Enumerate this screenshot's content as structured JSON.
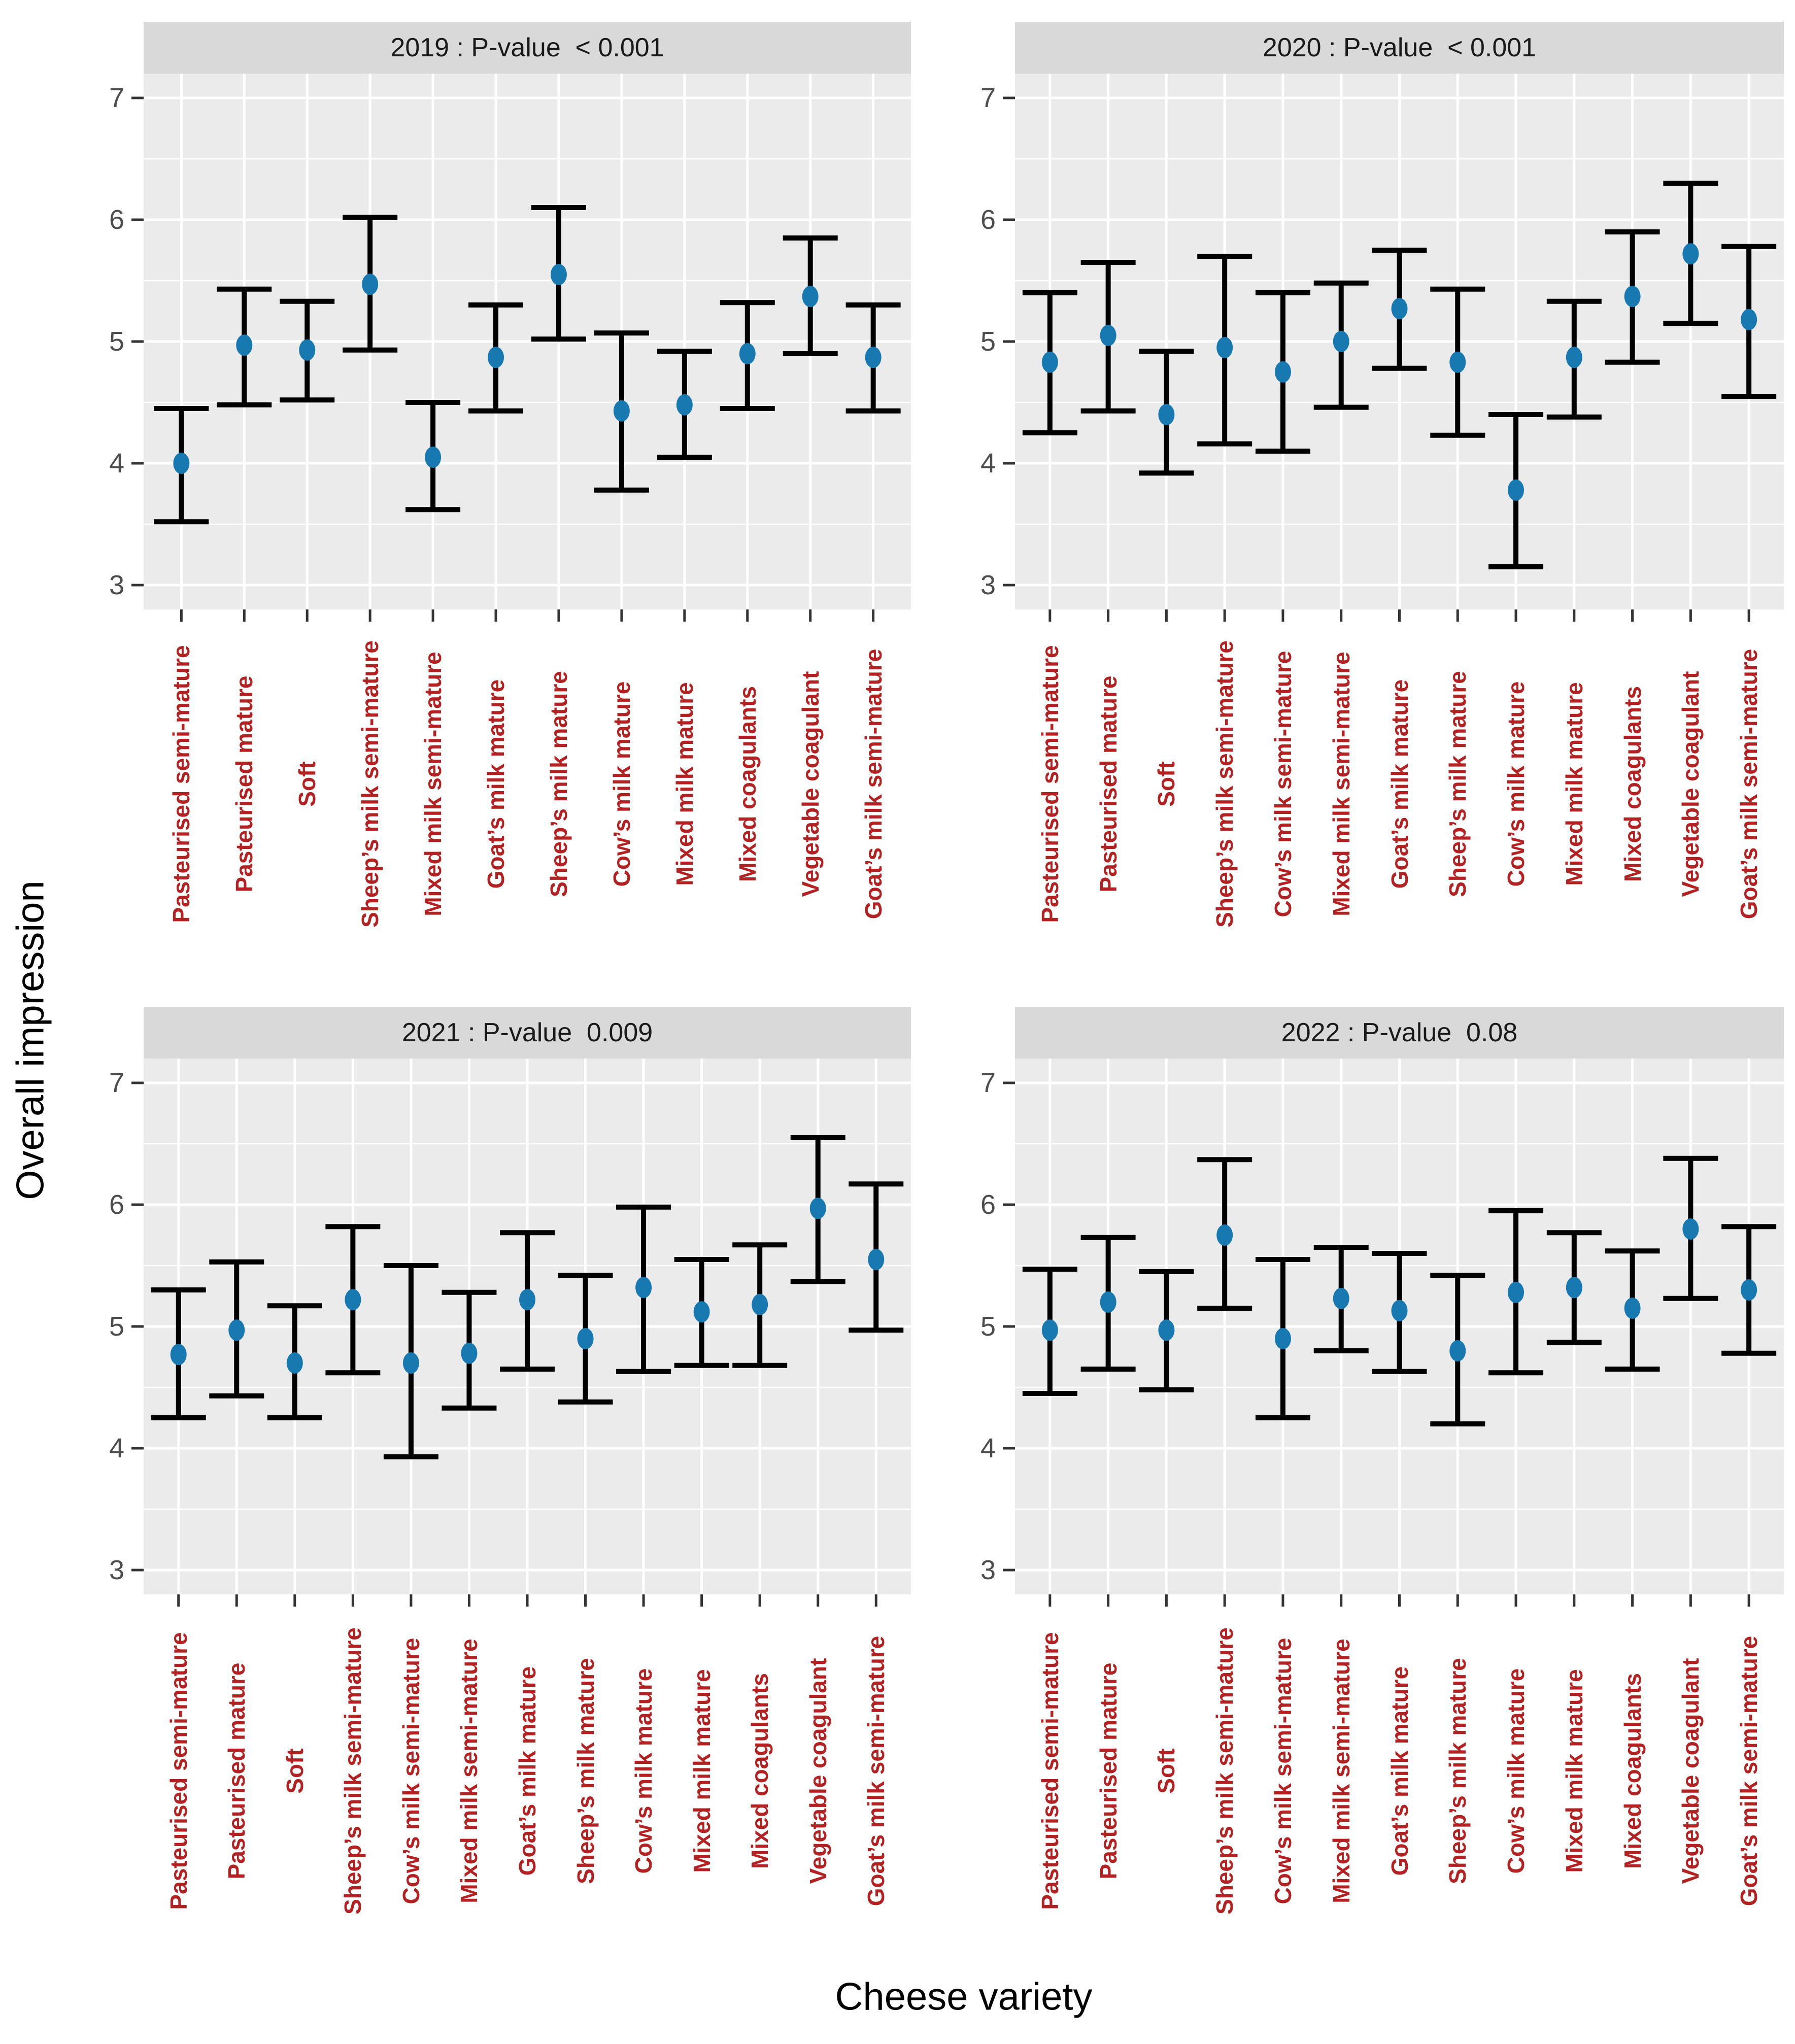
{
  "figure": {
    "y_axis_title": "Overall impression",
    "x_axis_title": "Cheese variety",
    "colors": {
      "point": "#1878b0",
      "error_bar": "#000000",
      "panel_background": "#ebebeb",
      "strip_background": "#d9d9d9",
      "grid_major": "#ffffff",
      "grid_minor": "#ffffff",
      "x_tick_label": "#b22222",
      "y_tick_label": "#4d4d4d",
      "tick_mark": "#333333"
    }
  },
  "chart_data": [
    {
      "type": "scatter",
      "panel": "2019",
      "title": "2019 : P-value  < 0.001",
      "ylabel": "Overall impression",
      "xlabel": "Cheese variety",
      "ylim": [
        2.8,
        7.2
      ],
      "yticks": [
        3,
        4,
        5,
        6,
        7
      ],
      "yticks_minor": [
        3.5,
        4.5,
        5.5,
        6.5
      ],
      "grid": true,
      "categories": [
        "Pasteurised semi-mature",
        "Pasteurised mature",
        "Soft",
        "Sheep’s milk semi-mature",
        "Mixed milk semi-mature",
        "Goat’s milk mature",
        "Sheep’s milk mature",
        "Cow’s milk mature",
        "Mixed milk mature",
        "Mixed coagulants",
        "Vegetable coagulant",
        "Goat’s milk semi-mature"
      ],
      "means": [
        4.0,
        4.97,
        4.93,
        5.47,
        4.05,
        4.87,
        5.55,
        4.43,
        4.48,
        4.9,
        5.37,
        4.87
      ],
      "lower": [
        3.52,
        4.48,
        4.52,
        4.93,
        3.62,
        4.43,
        5.02,
        3.78,
        4.05,
        4.45,
        4.9,
        4.43
      ],
      "upper": [
        4.45,
        5.43,
        5.33,
        6.02,
        4.5,
        5.3,
        6.1,
        5.07,
        4.92,
        5.32,
        5.85,
        5.3
      ]
    },
    {
      "type": "scatter",
      "panel": "2020",
      "title": "2020 : P-value  < 0.001",
      "ylabel": "Overall impression",
      "xlabel": "Cheese variety",
      "ylim": [
        2.8,
        7.2
      ],
      "yticks": [
        3,
        4,
        5,
        6,
        7
      ],
      "yticks_minor": [
        3.5,
        4.5,
        5.5,
        6.5
      ],
      "grid": true,
      "categories": [
        "Pasteurised semi-mature",
        "Pasteurised mature",
        "Soft",
        "Sheep’s milk semi-mature",
        "Cow’s milk semi-mature",
        "Mixed milk semi-mature",
        "Goat’s milk mature",
        "Sheep’s milk mature",
        "Cow’s milk mature",
        "Mixed milk mature",
        "Mixed coagulants",
        "Vegetable coagulant",
        "Goat’s milk semi-mature"
      ],
      "means": [
        4.83,
        5.05,
        4.4,
        4.95,
        4.75,
        5.0,
        5.27,
        4.83,
        3.78,
        4.87,
        5.37,
        5.72,
        5.18
      ],
      "lower": [
        4.25,
        4.43,
        3.92,
        4.16,
        4.1,
        4.46,
        4.78,
        4.23,
        3.15,
        4.38,
        4.83,
        5.15,
        4.55
      ],
      "upper": [
        5.4,
        5.65,
        4.92,
        5.7,
        5.4,
        5.48,
        5.75,
        5.43,
        4.4,
        5.33,
        5.9,
        6.3,
        5.78
      ]
    },
    {
      "type": "scatter",
      "panel": "2021",
      "title": "2021 : P-value  0.009",
      "ylabel": "Overall impression",
      "xlabel": "Cheese variety",
      "ylim": [
        2.8,
        7.2
      ],
      "yticks": [
        3,
        4,
        5,
        6,
        7
      ],
      "yticks_minor": [
        3.5,
        4.5,
        5.5,
        6.5
      ],
      "grid": true,
      "categories": [
        "Pasteurised semi-mature",
        "Pasteurised mature",
        "Soft",
        "Sheep’s milk semi-mature",
        "Cow’s milk semi-mature",
        "Mixed milk semi-mature",
        "Goat’s milk mature",
        "Sheep’s milk mature",
        "Cow’s milk mature",
        "Mixed milk mature",
        "Mixed coagulants",
        "Vegetable coagulant",
        "Goat’s milk semi-mature"
      ],
      "means": [
        4.77,
        4.97,
        4.7,
        5.22,
        4.7,
        4.78,
        5.22,
        4.9,
        5.32,
        5.12,
        5.18,
        5.97,
        5.55
      ],
      "lower": [
        4.25,
        4.43,
        4.25,
        4.62,
        3.93,
        4.33,
        4.65,
        4.38,
        4.63,
        4.68,
        4.68,
        5.37,
        4.97
      ],
      "upper": [
        5.3,
        5.53,
        5.17,
        5.82,
        5.5,
        5.28,
        5.77,
        5.42,
        5.98,
        5.55,
        5.67,
        6.55,
        6.17
      ]
    },
    {
      "type": "scatter",
      "panel": "2022",
      "title": "2022 : P-value  0.08",
      "ylabel": "Overall impression",
      "xlabel": "Cheese variety",
      "ylim": [
        2.8,
        7.2
      ],
      "yticks": [
        3,
        4,
        5,
        6,
        7
      ],
      "yticks_minor": [
        3.5,
        4.5,
        5.5,
        6.5
      ],
      "grid": true,
      "categories": [
        "Pasteurised semi-mature",
        "Pasteurised mature",
        "Soft",
        "Sheep’s milk semi-mature",
        "Cow’s milk semi-mature",
        "Mixed milk semi-mature",
        "Goat’s milk mature",
        "Sheep’s milk mature",
        "Cow’s milk mature",
        "Mixed milk mature",
        "Mixed coagulants",
        "Vegetable coagulant",
        "Goat’s milk semi-mature"
      ],
      "means": [
        4.97,
        5.2,
        4.97,
        5.75,
        4.9,
        5.23,
        5.13,
        4.8,
        5.28,
        5.32,
        5.15,
        5.8,
        5.3
      ],
      "lower": [
        4.45,
        4.65,
        4.48,
        5.15,
        4.25,
        4.8,
        4.63,
        4.2,
        4.62,
        4.87,
        4.65,
        5.23,
        4.78
      ],
      "upper": [
        5.47,
        5.73,
        5.45,
        6.37,
        5.55,
        5.65,
        5.6,
        5.42,
        5.95,
        5.77,
        5.62,
        6.38,
        5.82
      ]
    }
  ]
}
